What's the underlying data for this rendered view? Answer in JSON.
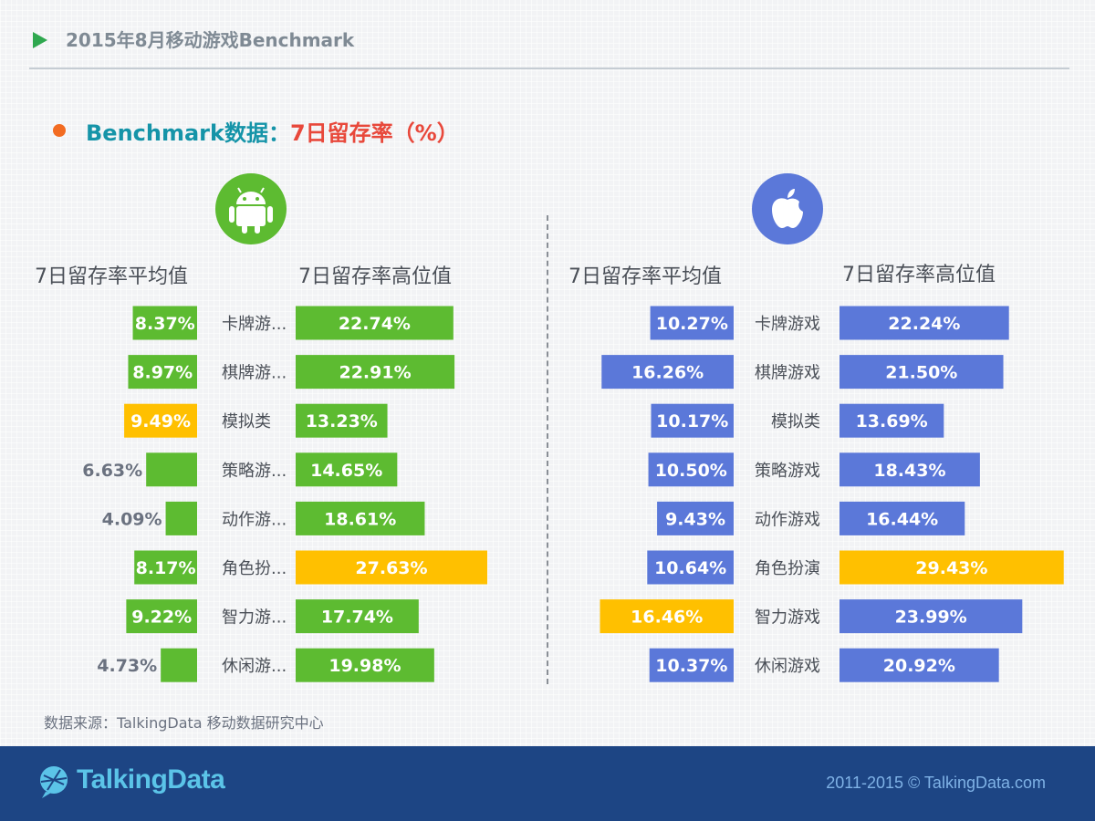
{
  "header": {
    "title": "2015年8月移动游戏Benchmark"
  },
  "subtitle": {
    "lead": "Benchmark数据：",
    "metric": "7日留存率（%）"
  },
  "platforms": {
    "android_icon": "android-icon",
    "apple_icon": "apple-icon"
  },
  "column_headers": {
    "average": "7日留存率平均值",
    "high": "7日留存率高位值"
  },
  "colors": {
    "android": "#5dbb31",
    "ios": "#5b78d9",
    "highlight": "#ffc000"
  },
  "chart_data": [
    {
      "type": "bar",
      "title": "Android",
      "categories": [
        "卡牌游...",
        "棋牌游...",
        "模拟类",
        "策略游...",
        "动作游...",
        "角色扮...",
        "智力游...",
        "休闲游..."
      ],
      "series": [
        {
          "name": "7日留存率平均值",
          "values": [
            8.37,
            8.97,
            9.49,
            6.63,
            4.09,
            8.17,
            9.22,
            4.73
          ],
          "labels": [
            "8.37%",
            "8.97%",
            "9.49%",
            "6.63%",
            "4.09%",
            "8.17%",
            "9.22%",
            "4.73%"
          ],
          "highlight_index": 2
        },
        {
          "name": "7日留存率高位值",
          "values": [
            22.74,
            22.91,
            13.23,
            14.65,
            18.61,
            27.63,
            17.74,
            19.98
          ],
          "labels": [
            "22.74%",
            "22.91%",
            "13.23%",
            "14.65%",
            "18.61%",
            "27.63%",
            "17.74%",
            "19.98%"
          ],
          "highlight_index": 5
        }
      ]
    },
    {
      "type": "bar",
      "title": "iOS",
      "categories": [
        "卡牌游戏",
        "棋牌游戏",
        "模拟类",
        "策略游戏",
        "动作游戏",
        "角色扮演",
        "智力游戏",
        "休闲游戏"
      ],
      "series": [
        {
          "name": "7日留存率平均值",
          "values": [
            10.27,
            16.26,
            10.17,
            10.5,
            9.43,
            10.64,
            16.46,
            10.37
          ],
          "labels": [
            "10.27%",
            "16.26%",
            "10.17%",
            "10.50%",
            "9.43%",
            "10.64%",
            "16.46%",
            "10.37%"
          ],
          "highlight_index": 6
        },
        {
          "name": "7日留存率高位值",
          "values": [
            22.24,
            21.5,
            13.69,
            18.43,
            16.44,
            29.43,
            23.99,
            20.92
          ],
          "labels": [
            "22.24%",
            "21.50%",
            "13.69%",
            "18.43%",
            "16.44%",
            "29.43%",
            "23.99%",
            "20.92%"
          ],
          "highlight_index": 5
        }
      ]
    }
  ],
  "source": "数据来源：TalkingData 移动数据研究中心",
  "footer": {
    "brand": "TalkingData",
    "copyright": "2011-2015 © TalkingData.com",
    "logo_icon": "talkingdata-logo-icon"
  }
}
